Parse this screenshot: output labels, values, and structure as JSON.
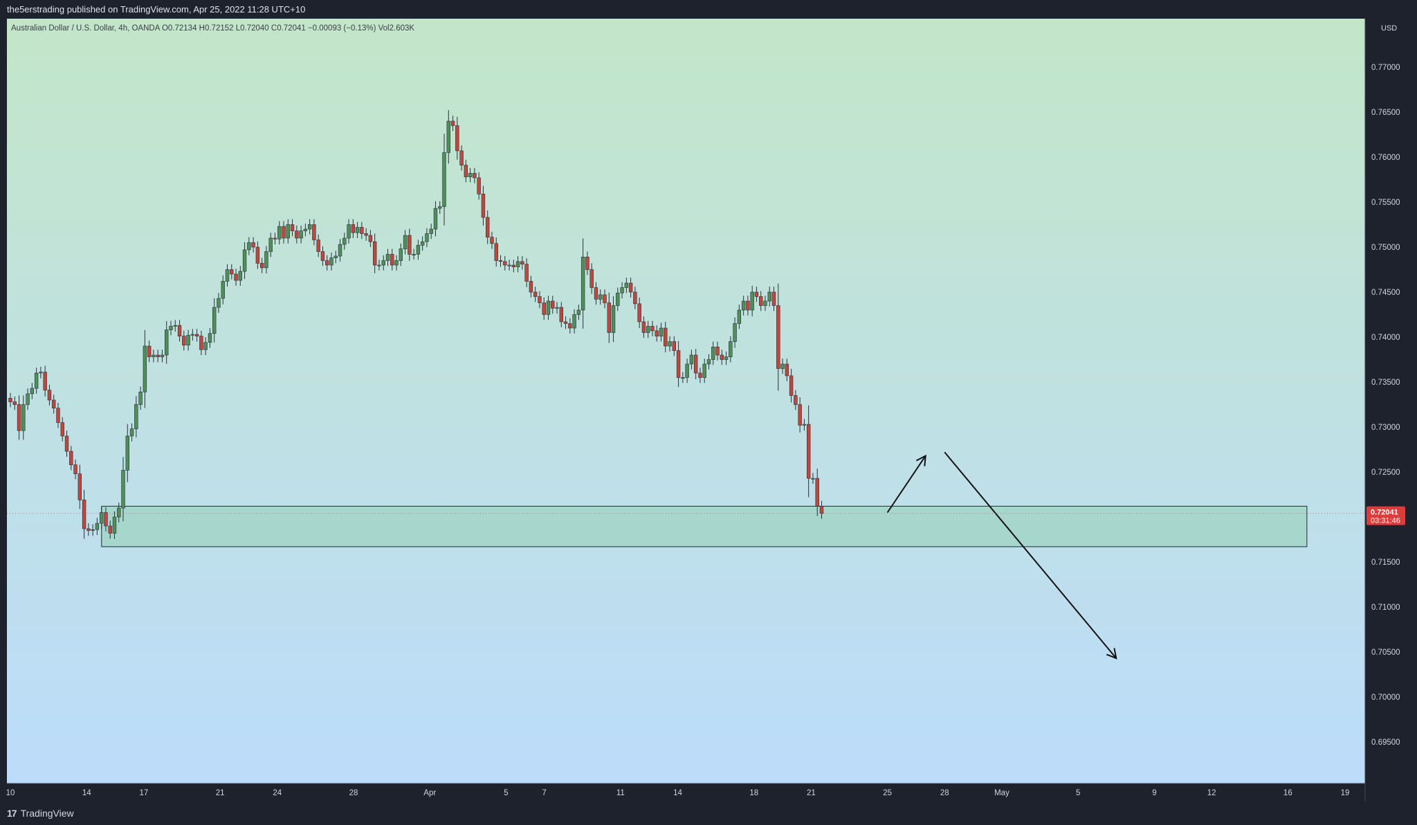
{
  "header": {
    "publish_line": "the5erstrading published on TradingView.com, Apr 25, 2022 11:28 UTC+10"
  },
  "footer": {
    "brand": "TradingView",
    "logo": "17"
  },
  "colors": {
    "bull": "#4f8f5a",
    "bear": "#c0473d",
    "zone_fill": "#9fd3c1",
    "zone_stroke": "#1d2b28",
    "price_label_bg": "#e03b3b",
    "bg_top": "#c3e6c9",
    "bg_bottom": "#bcdcfb"
  },
  "chart_data": {
    "type": "candlestick",
    "symbol_line": "Australian Dollar / U.S. Dollar, 4h, OANDA  O0.72134  H0.72152  L0.72040  C0.72041  −0.00093 (−0.13%)  Vol2.603K",
    "currency": "USD",
    "ylim": [
      0.691,
      0.779
    ],
    "y_ticks": [
      "0.69500",
      "0.70000",
      "0.70500",
      "0.71000",
      "0.71500",
      "0.72000",
      "0.72500",
      "0.73000",
      "0.73500",
      "0.74000",
      "0.74500",
      "0.75000",
      "0.75500",
      "0.76000",
      "0.76500",
      "0.77000"
    ],
    "x_tick_labels": [
      "10",
      "14",
      "17",
      "21",
      "24",
      "28",
      "Apr",
      "5",
      "7",
      "11",
      "14",
      "18",
      "21",
      "25",
      "28",
      "May",
      "5",
      "9",
      "12",
      "16",
      "19"
    ],
    "last_price": "0.72041",
    "countdown": "03:31:46",
    "support_zone": {
      "from_date": "Mar 15",
      "to_date": "May 17",
      "low": 0.7167,
      "high": 0.7212
    },
    "annotations": [
      {
        "type": "arrow",
        "direction": "up",
        "from": {
          "date": "Apr 25",
          "price": 0.7205
        },
        "to": {
          "date": "Apr 27",
          "price": 0.7268
        }
      },
      {
        "type": "arrow",
        "direction": "down",
        "from": {
          "date": "Apr 28",
          "price": 0.7272
        },
        "to": {
          "date": "May 7",
          "price": 0.7043
        }
      }
    ],
    "candle_closes": [
      0.7328,
      0.7325,
      0.7296,
      0.7325,
      0.7337,
      0.7343,
      0.736,
      0.7361,
      0.7341,
      0.733,
      0.7321,
      0.7305,
      0.729,
      0.7273,
      0.7258,
      0.7248,
      0.7219,
      0.7187,
      0.7185,
      0.7186,
      0.7193,
      0.7205,
      0.719,
      0.7182,
      0.72,
      0.721,
      0.7252,
      0.729,
      0.7298,
      0.7325,
      0.7339,
      0.739,
      0.7378,
      0.738,
      0.7378,
      0.738,
      0.7408,
      0.7412,
      0.7413,
      0.7401,
      0.7391,
      0.7402,
      0.7403,
      0.7401,
      0.7386,
      0.7394,
      0.7404,
      0.7433,
      0.7443,
      0.7462,
      0.7475,
      0.747,
      0.7463,
      0.7473,
      0.7497,
      0.7505,
      0.75,
      0.7482,
      0.7477,
      0.7495,
      0.751,
      0.7509,
      0.7523,
      0.751,
      0.7525,
      0.7518,
      0.751,
      0.7518,
      0.752,
      0.7525,
      0.7508,
      0.7495,
      0.7485,
      0.748,
      0.7488,
      0.749,
      0.7503,
      0.751,
      0.7525,
      0.7516,
      0.7522,
      0.7515,
      0.7513,
      0.7506,
      0.748,
      0.748,
      0.7485,
      0.7492,
      0.748,
      0.7485,
      0.7498,
      0.7513,
      0.7492,
      0.7492,
      0.7502,
      0.7506,
      0.7515,
      0.752,
      0.7543,
      0.7545,
      0.7605,
      0.764,
      0.7635,
      0.7607,
      0.7591,
      0.7578,
      0.7582,
      0.7577,
      0.7559,
      0.7533,
      0.7511,
      0.7504,
      0.7485,
      0.7484,
      0.748,
      0.748,
      0.7478,
      0.7484,
      0.7481,
      0.7462,
      0.745,
      0.7445,
      0.7438,
      0.7425,
      0.744,
      0.7432,
      0.7433,
      0.7417,
      0.7415,
      0.741,
      0.7425,
      0.743,
      0.7489,
      0.7475,
      0.7455,
      0.7442,
      0.7447,
      0.7438,
      0.7405,
      0.7435,
      0.7449,
      0.7455,
      0.746,
      0.745,
      0.7437,
      0.7417,
      0.7405,
      0.7412,
      0.7407,
      0.7401,
      0.741,
      0.739,
      0.7395,
      0.7385,
      0.7355,
      0.7355,
      0.737,
      0.738,
      0.736,
      0.7355,
      0.737,
      0.7375,
      0.7389,
      0.738,
      0.7375,
      0.7378,
      0.7395,
      0.7415,
      0.743,
      0.744,
      0.743,
      0.745,
      0.7445,
      0.7435,
      0.744,
      0.745,
      0.7435,
      0.7365,
      0.737,
      0.7357,
      0.7335,
      0.7325,
      0.7302,
      0.7303,
      0.7243,
      0.7243,
      0.7212,
      0.7204
    ]
  }
}
